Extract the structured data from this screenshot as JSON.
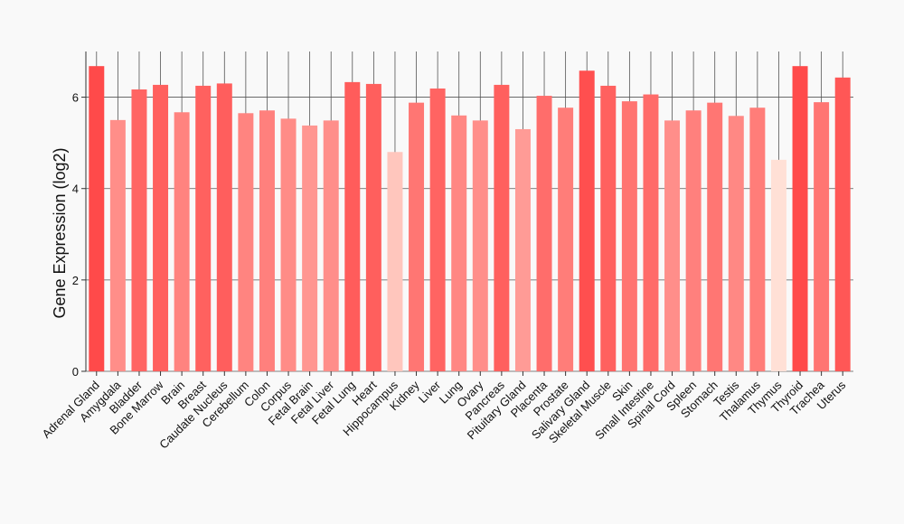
{
  "chart_data": {
    "type": "bar",
    "title": "",
    "xlabel": "",
    "ylabel": "Gene Expression (log2)",
    "ylim": [
      0,
      7
    ],
    "yticks": [
      0,
      2,
      4,
      6
    ],
    "grid": true,
    "categories": [
      "Adrenal Gland",
      "Amygdala",
      "Bladder",
      "Bone Marrow",
      "Brain",
      "Breast",
      "Caudate Nucleus",
      "Cerebellum",
      "Colon",
      "Corpus",
      "Fetal Brain",
      "Fetal Liver",
      "Fetal Lung",
      "Heart",
      "Hippocampus",
      "Kidney",
      "Liver",
      "Lung",
      "Ovary",
      "Pancreas",
      "Pituitary Gland",
      "Placenta",
      "Prostate",
      "Salivary Gland",
      "Skeletal Muscle",
      "Skin",
      "Small Intestine",
      "Spinal Cord",
      "Spleen",
      "Stomach",
      "Testis",
      "Thalamus",
      "Thymus",
      "Thyroid",
      "Trachea",
      "Uterus"
    ],
    "values": [
      6.68,
      5.5,
      6.17,
      6.27,
      5.67,
      6.25,
      6.3,
      5.65,
      5.71,
      5.53,
      5.38,
      5.49,
      6.33,
      6.29,
      4.8,
      5.88,
      6.19,
      5.6,
      5.49,
      6.27,
      5.3,
      6.03,
      5.77,
      6.58,
      6.25,
      5.91,
      6.06,
      5.49,
      5.71,
      5.88,
      5.59,
      5.77,
      4.63,
      6.68,
      5.89,
      6.43
    ],
    "color_scale": {
      "low": "#ffe0d6",
      "high": "#ff4a4a"
    }
  }
}
